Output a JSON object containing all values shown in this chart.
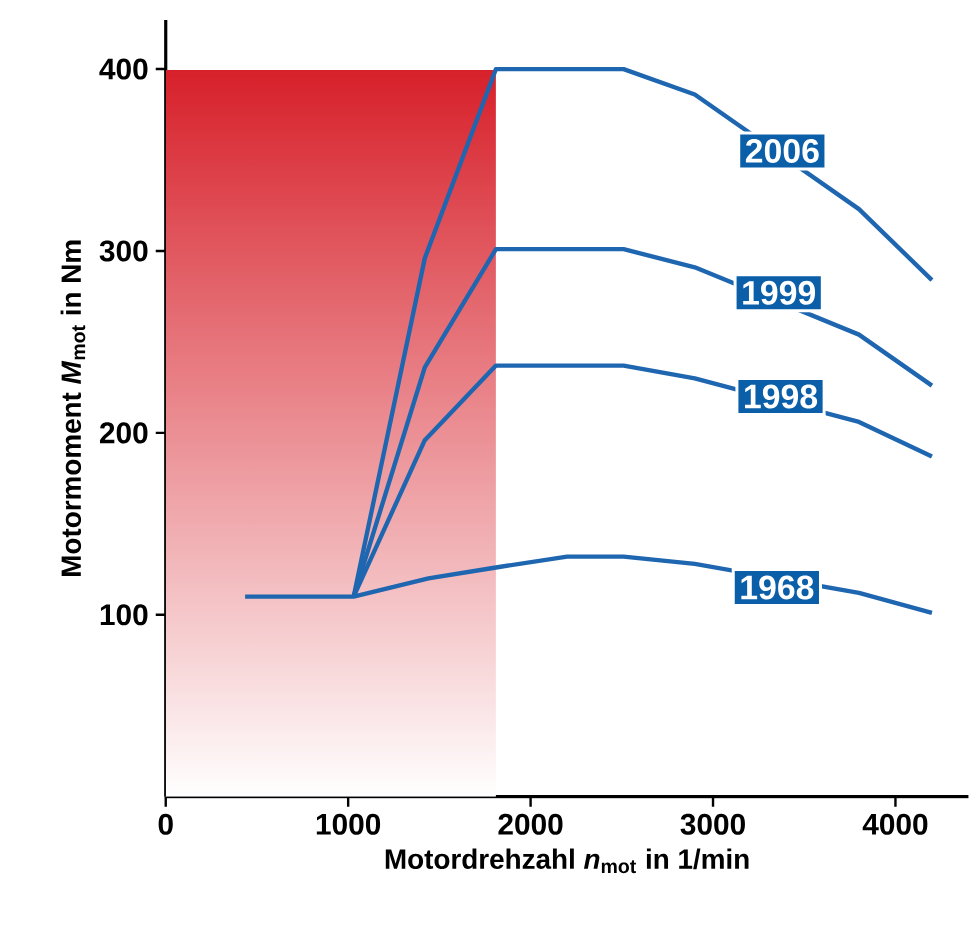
{
  "chart_data": {
    "type": "line",
    "xlabel": "Motordrehzahl *n*$_{mot}$ in 1/min",
    "ylabel": "Motormoment *M*$_{mot}$ in Nm",
    "xlim": [
      0,
      4400
    ],
    "ylim": [
      0,
      427
    ],
    "xticks": [
      0,
      1000,
      2000,
      3000,
      4000
    ],
    "yticks": [
      100,
      200,
      300,
      400
    ],
    "series": [
      {
        "color": "#1f66b0",
        "x": [
          1030,
          1420,
          1810,
          2510,
          2900,
          3800,
          4200
        ],
        "values": [
          110,
          296,
          400,
          400,
          386,
          323,
          284
        ]
      },
      {
        "color": "#1f66b0",
        "x": [
          1030,
          1420,
          1810,
          2510,
          2900,
          3800,
          4200
        ],
        "values": [
          110,
          236,
          301,
          301,
          291,
          254,
          226
        ]
      },
      {
        "color": "#1f66b0",
        "x": [
          1030,
          1420,
          1810,
          2510,
          2900,
          3800,
          4200
        ],
        "values": [
          110,
          196,
          237,
          237,
          230,
          206,
          187
        ]
      },
      {
        "color": "#1f66b0",
        "x": [
          435,
          1030,
          1440,
          1810,
          2200,
          2510,
          2900,
          3800,
          4200
        ],
        "values": [
          110,
          110,
          120,
          126,
          132,
          132,
          128,
          112,
          101
        ]
      }
    ],
    "annotations": [
      {
        "text": "2006",
        "x": 3380,
        "y": 355
      },
      {
        "text": "1999",
        "x": 3360,
        "y": 277
      },
      {
        "text": "1998",
        "x": 3370,
        "y": 220
      },
      {
        "text": "1968",
        "x": 3350,
        "y": 115
      }
    ],
    "bands": [
      {
        "axis": "x",
        "from": 0,
        "to": 1810,
        "color": "#d7202a"
      }
    ],
    "marker": "none",
    "line_style": "solid"
  }
}
